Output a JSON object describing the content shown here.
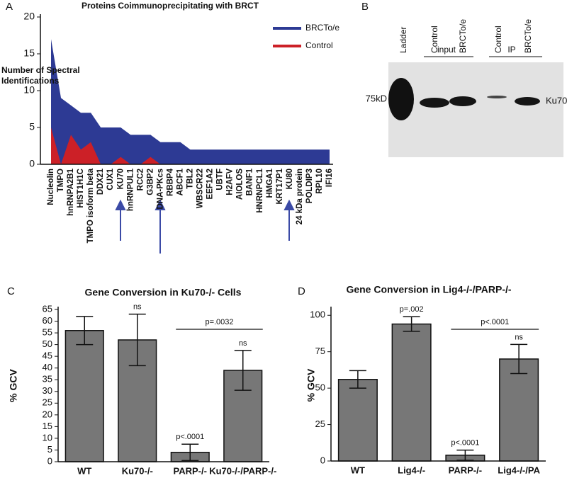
{
  "chart_data": [
    {
      "panel": "A",
      "type": "area",
      "title": "Proteins Coimmunoprecipitating with BRCT",
      "y_label": [
        "Number of Spectral",
        "Identifications"
      ],
      "categories": [
        "Nucleolin",
        "TMPO",
        "hnRNPA2B1",
        "HIST1H1C",
        "TMPO isoform beta",
        "DDX21",
        "CUX1",
        "KU70",
        "hnRNPUL1",
        "RCC2",
        "G3BP2",
        "DNA-PKcs",
        "RBBP4",
        "ABCF1",
        "TBL2",
        "WBSCR22",
        "EEF1A2",
        "UBTF",
        "H2AFV",
        "AIOLOS",
        "BANF1",
        "HNRNPCL1",
        "HMGA1",
        "KRT17P1",
        "KU80",
        "24 kDa protein",
        "POLDIP3",
        "RPL10",
        "IFI16"
      ],
      "series": [
        {
          "name": "BRCTo/e",
          "color": "#2d3a94",
          "values": [
            17,
            9,
            8,
            7,
            7,
            5,
            5,
            5,
            4,
            4,
            4,
            3,
            3,
            3,
            2,
            2,
            2,
            2,
            2,
            2,
            2,
            2,
            2,
            2,
            2,
            2,
            2,
            2,
            2
          ]
        },
        {
          "name": "Control",
          "color": "#cc2027",
          "values": [
            5,
            0,
            4,
            2,
            3,
            0,
            0,
            1,
            0,
            0,
            1,
            0,
            0,
            0,
            0,
            0,
            0,
            0,
            0,
            0,
            0,
            0,
            0,
            0,
            0,
            0,
            0,
            0,
            0
          ]
        }
      ],
      "ylim": [
        0,
        20
      ],
      "yticks": [
        0,
        5,
        10,
        15,
        20
      ],
      "legend": "upper right"
    },
    {
      "panel": "C",
      "type": "bar",
      "title": "Gene Conversion in Ku70-/- Cells",
      "y_label": "% GCV",
      "categories": [
        "WT",
        "Ku70-/-",
        "PARP-/-",
        "Ku70-/-/PARP-/-"
      ],
      "values": [
        56,
        52,
        4,
        39
      ],
      "errors": [
        6,
        11,
        3.5,
        8.5
      ],
      "color": "#777777",
      "bar_annotations": [
        null,
        "ns",
        "p<.0001",
        "ns"
      ],
      "bracket_label": "p=.0032",
      "ylim": [
        0,
        65
      ],
      "yticks": [
        0,
        5,
        10,
        15,
        20,
        25,
        30,
        35,
        40,
        45,
        50,
        55,
        60,
        65
      ]
    },
    {
      "panel": "D",
      "type": "bar",
      "title": "Gene Conversion in Lig4-/-/PARP-/-",
      "y_label": "% GCV",
      "categories": [
        "WT",
        "Lig4-/-",
        "PARP-/-",
        "Lig4-/-/PA"
      ],
      "values": [
        56,
        94,
        4,
        70
      ],
      "errors": [
        6,
        5,
        3.5,
        10
      ],
      "color": "#777777",
      "bar_annotations": [
        null,
        "p=.002",
        "p<.0001",
        "ns"
      ],
      "bracket_label": "p<.0001",
      "ylim": [
        0,
        104
      ],
      "yticks": [
        0,
        25,
        50,
        75,
        100
      ]
    }
  ],
  "blot": {
    "panel": "B",
    "lanes": [
      "Ladder",
      "Control",
      "BRCTo/e",
      "Control",
      "BRCTo/e"
    ],
    "groups": [
      "input",
      "IP"
    ],
    "marker": "75kD",
    "band": "Ku70"
  }
}
